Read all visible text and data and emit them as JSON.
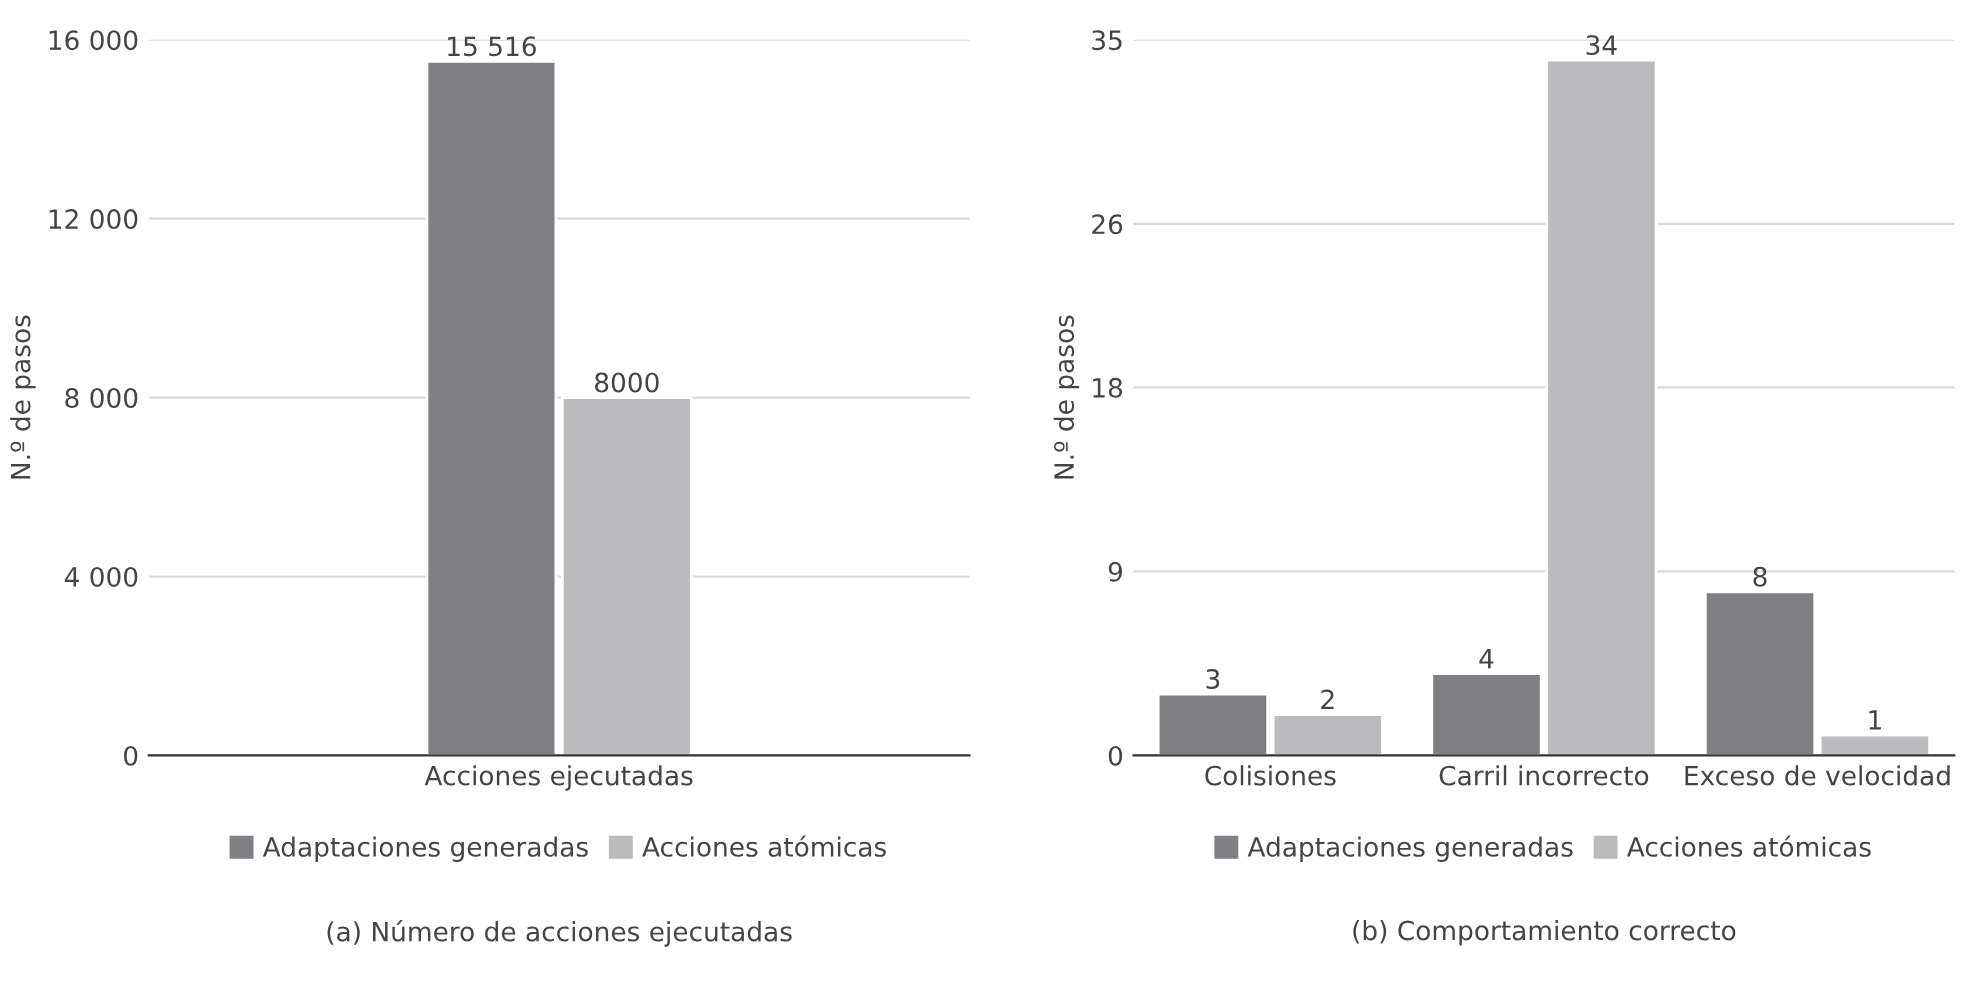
{
  "chart_data": [
    {
      "type": "bar",
      "ylabel": "N.º de pasos",
      "categories": [
        "Acciones ejecutadas"
      ],
      "series": [
        {
          "name": "Adaptaciones generadas",
          "color": "#808084",
          "values": [
            15516
          ],
          "value_labels": [
            "15 516"
          ]
        },
        {
          "name": "Acciones atómicas",
          "color": "#bbbbbd",
          "values": [
            8000
          ],
          "value_labels": [
            "8000"
          ]
        }
      ],
      "ylim": [
        0,
        16000
      ],
      "yticks": [
        0,
        {
          "value": 4000,
          "label": "4 000"
        },
        {
          "value": 8000,
          "label": "8 000"
        },
        {
          "value": 12000,
          "label": "12 000"
        },
        {
          "value": 16000,
          "label": "16 000"
        }
      ],
      "grid": "y",
      "legend": "bottom",
      "annotations": [
        "(a) Número de acciones ejecutadas"
      ]
    },
    {
      "type": "bar",
      "ylabel": "N.º de pasos",
      "categories": [
        "Colisiones",
        "Carril incorrecto",
        "Exceso de velocidad"
      ],
      "series": [
        {
          "name": "Adaptaciones generadas",
          "color": "#808084",
          "values": [
            3,
            4,
            8
          ]
        },
        {
          "name": "Acciones atómicas",
          "color": "#bbbbbd",
          "values": [
            2,
            34,
            1
          ]
        }
      ],
      "ylim": [
        0,
        35
      ],
      "yticks": [
        0,
        9,
        18,
        26,
        35
      ],
      "data_labels": true,
      "grid": "y",
      "legend": "bottom",
      "annotations": [
        "(b) Comportamiento correcto"
      ]
    }
  ]
}
